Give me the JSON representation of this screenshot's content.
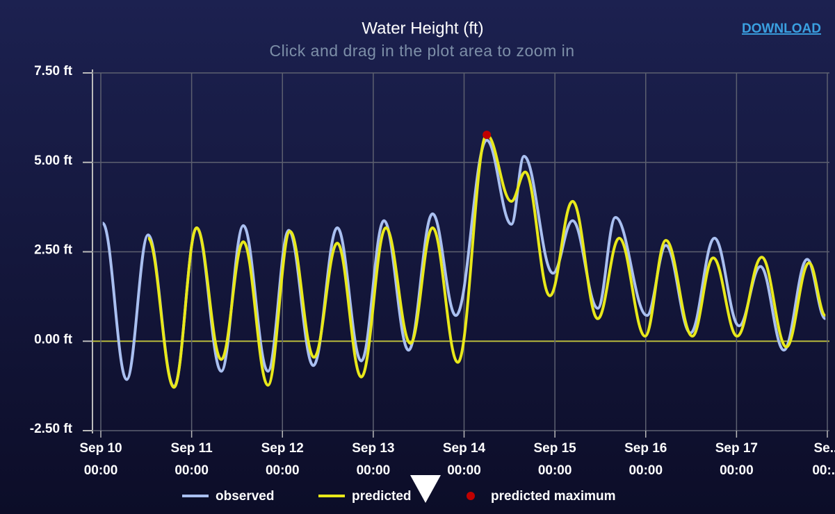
{
  "chart_data": {
    "type": "line",
    "title": "Water Height (ft)",
    "subtitle": "Click and drag in the plot area to zoom in",
    "download": "DOWNLOAD",
    "xlim": [
      "Sep 10 00:00",
      "Sep 18 00:00"
    ],
    "xticks": [
      {
        "value": "Sep 10 00:00",
        "label": [
          "Sep 10",
          "00:00"
        ]
      },
      {
        "value": "Sep 11 00:00",
        "label": [
          "Sep 11",
          "00:00"
        ]
      },
      {
        "value": "Sep 12 00:00",
        "label": [
          "Sep 12",
          "00:00"
        ]
      },
      {
        "value": "Sep 13 00:00",
        "label": [
          "Sep 13",
          "00:00"
        ]
      },
      {
        "value": "Sep 14 00:00",
        "label": [
          "Sep 14",
          "00:00"
        ]
      },
      {
        "value": "Sep 15 00:00",
        "label": [
          "Sep 15",
          "00:00"
        ]
      },
      {
        "value": "Sep 16 00:00",
        "label": [
          "Sep 16",
          "00:00"
        ]
      },
      {
        "value": "Sep 17 00:00",
        "label": [
          "Sep 17",
          "00:00"
        ]
      },
      {
        "value": "Sep 18 00:00",
        "label": [
          "Se...",
          "00:..."
        ]
      }
    ],
    "ylim": [
      -2.5,
      7.5
    ],
    "yticks": [
      {
        "value": -2.5,
        "label": "-2.50 ft"
      },
      {
        "value": 0,
        "label": "0.00 ft"
      },
      {
        "value": 2.5,
        "label": "2.50 ft"
      },
      {
        "value": 5,
        "label": "5.00 ft"
      },
      {
        "value": 7.5,
        "label": "7.50 ft"
      }
    ],
    "grid": true,
    "zero_line_color": "#b8ba3c",
    "series": [
      {
        "name": "observed",
        "color": "#a9bff0",
        "x": [
          "Sep 10 00:30",
          "Sep 10 06:50",
          "Sep 10 12:30",
          "Sep 10 19:20",
          "Sep 11 01:20",
          "Sep 11 07:50",
          "Sep 11 13:40",
          "Sep 11 20:10",
          "Sep 12 01:40",
          "Sep 12 08:10",
          "Sep 12 14:30",
          "Sep 12 20:50",
          "Sep 13 02:50",
          "Sep 13 09:20",
          "Sep 13 15:40",
          "Sep 13 21:50",
          "Sep 14 06:00",
          "Sep 14 12:30",
          "Sep 14 15:50",
          "Sep 14 23:30",
          "Sep 15 04:40",
          "Sep 15 11:20",
          "Sep 15 16:00",
          "Sep 16 00:20",
          "Sep 16 05:20",
          "Sep 16 11:50",
          "Sep 16 18:10",
          "Sep 17 00:40",
          "Sep 17 06:20",
          "Sep 17 12:30",
          "Sep 17 18:40",
          "Sep 17 23:30"
        ],
        "values": [
          3.3,
          -1.07,
          2.97,
          -1.27,
          3.17,
          -0.84,
          3.23,
          -0.84,
          3.1,
          -0.68,
          3.17,
          -0.55,
          3.37,
          -0.25,
          3.56,
          0.72,
          5.62,
          3.27,
          5.17,
          1.9,
          3.37,
          0.92,
          3.46,
          0.72,
          2.68,
          0.23,
          2.88,
          0.43,
          2.09,
          -0.25,
          2.29,
          0.63
        ]
      },
      {
        "name": "predicted",
        "color": "#e8e81a",
        "x": [
          "Sep 10 12:30",
          "Sep 10 19:20",
          "Sep 11 01:20",
          "Sep 11 07:50",
          "Sep 11 13:40",
          "Sep 11 20:10",
          "Sep 12 02:00",
          "Sep 12 08:20",
          "Sep 12 14:30",
          "Sep 12 20:50",
          "Sep 13 03:20",
          "Sep 13 09:50",
          "Sep 13 15:40",
          "Sep 13 22:20",
          "Sep 14 06:00",
          "Sep 14 12:30",
          "Sep 14 16:10",
          "Sep 14 22:40",
          "Sep 15 04:40",
          "Sep 15 11:20",
          "Sep 15 17:00",
          "Sep 15 23:50",
          "Sep 16 05:20",
          "Sep 16 12:20",
          "Sep 16 17:50",
          "Sep 17 00:10",
          "Sep 17 06:40",
          "Sep 17 13:10",
          "Sep 17 19:10",
          "Sep 17 23:30"
        ],
        "values": [
          2.88,
          -1.29,
          3.17,
          -0.51,
          2.78,
          -1.23,
          3.07,
          -0.45,
          2.74,
          -1.0,
          3.17,
          -0.06,
          3.17,
          -0.59,
          5.77,
          3.91,
          4.73,
          1.27,
          3.91,
          0.63,
          2.88,
          0.14,
          2.82,
          0.14,
          2.33,
          0.14,
          2.35,
          -0.16,
          2.19,
          0.72
        ]
      }
    ],
    "markers": [
      {
        "name": "predicted maximum",
        "color": "#c00000",
        "x": "Sep 14 06:00",
        "value": 5.77
      }
    ]
  }
}
